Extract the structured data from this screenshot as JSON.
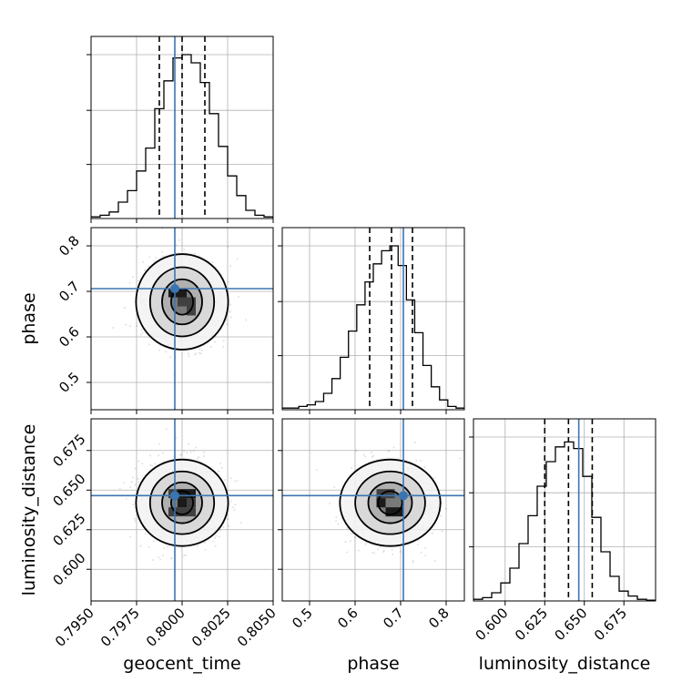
{
  "chart_data": {
    "type": "corner",
    "grid": true,
    "truth_color": "#3b75af",
    "parameters": [
      "geocent_time",
      "phase",
      "luminosity_distance"
    ],
    "truths": [
      0.7996,
      0.706,
      0.6465
    ],
    "ranges": [
      [
        0.795,
        0.805
      ],
      [
        0.44,
        0.84
      ],
      [
        0.58,
        0.695
      ]
    ],
    "ticks": [
      {
        "values": [
          0.795,
          0.7975,
          0.8,
          0.8025,
          0.805
        ],
        "labels": [
          "0.7950",
          "0.7975",
          "0.8000",
          "0.8025",
          "0.8050"
        ]
      },
      {
        "values": [
          0.5,
          0.6,
          0.7,
          0.8
        ],
        "labels": [
          "0.5",
          "0.6",
          "0.7",
          "0.8"
        ]
      },
      {
        "values": [
          0.6,
          0.625,
          0.65,
          0.675
        ],
        "labels": [
          "0.600",
          "0.625",
          "0.650",
          "0.675"
        ]
      }
    ],
    "quantiles": [
      [
        0.79875,
        0.8,
        0.80125
      ],
      [
        0.632,
        0.68,
        0.726
      ],
      [
        0.625,
        0.64,
        0.655
      ]
    ],
    "histograms": [
      [
        0.01,
        0.02,
        0.04,
        0.1,
        0.17,
        0.29,
        0.43,
        0.67,
        0.84,
        0.98,
        1.0,
        0.95,
        0.83,
        0.64,
        0.44,
        0.26,
        0.14,
        0.05,
        0.02,
        0.01
      ],
      [
        0.01,
        0.01,
        0.02,
        0.03,
        0.05,
        0.1,
        0.19,
        0.32,
        0.48,
        0.64,
        0.78,
        0.89,
        0.97,
        1.0,
        0.88,
        0.67,
        0.47,
        0.27,
        0.14,
        0.06,
        0.02,
        0.01
      ],
      [
        0.01,
        0.02,
        0.05,
        0.11,
        0.2,
        0.35,
        0.52,
        0.7,
        0.85,
        0.94,
        0.97,
        0.93,
        0.76,
        0.51,
        0.3,
        0.15,
        0.06,
        0.03,
        0.01,
        0.005
      ]
    ],
    "centers": [
      0.8,
      0.677,
      0.642
    ],
    "spreads": [
      0.0011,
      0.048,
      0.0125
    ]
  }
}
